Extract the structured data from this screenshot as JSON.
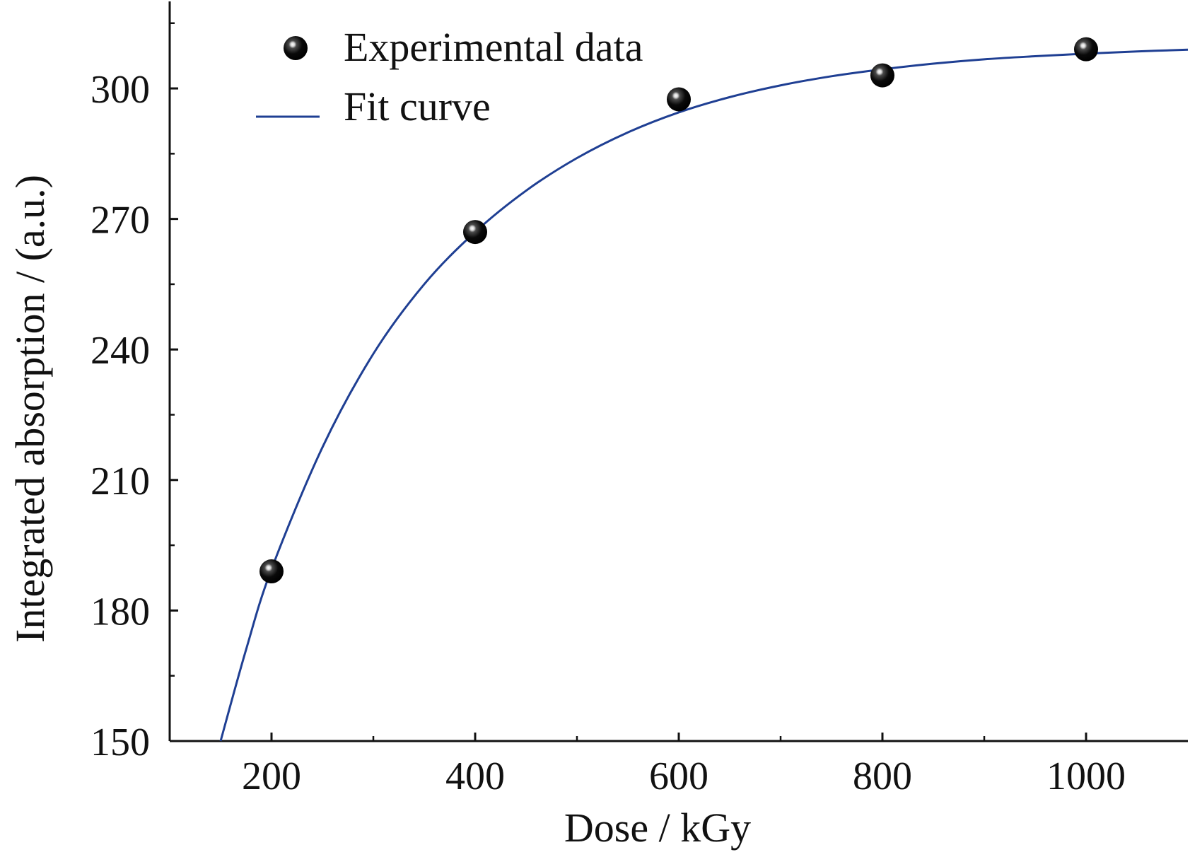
{
  "chart_data": {
    "type": "scatter",
    "title": "",
    "xlabel": "Dose / kGy",
    "ylabel": "Integrated absorption / (a.u.)",
    "xlim": [
      100,
      1100
    ],
    "ylim": [
      150,
      320
    ],
    "x_ticks": [
      200,
      400,
      600,
      800,
      1000
    ],
    "y_ticks": [
      150,
      180,
      210,
      240,
      270,
      300
    ],
    "grid": false,
    "legend_position": "top-left",
    "series": [
      {
        "name": "Experimental data",
        "kind": "scatter",
        "color": "#000000",
        "points": [
          {
            "x": 200,
            "y": 189
          },
          {
            "x": 400,
            "y": 267
          },
          {
            "x": 600,
            "y": 297.5
          },
          {
            "x": 800,
            "y": 303
          },
          {
            "x": 1000,
            "y": 309
          }
        ]
      },
      {
        "name": "Fit curve",
        "kind": "line",
        "color": "#1f3f93",
        "x": [
          150,
          175,
          200,
          250,
          300,
          350,
          400,
          450,
          500,
          550,
          600,
          650,
          700,
          750,
          800,
          850,
          900,
          950,
          1000,
          1050,
          1100
        ],
        "y": [
          150,
          171,
          189.5,
          217.5,
          239,
          255,
          267,
          276.5,
          284,
          289.9,
          294.5,
          298,
          300.7,
          302.8,
          304.4,
          305.7,
          306.7,
          307.4,
          308,
          308.5,
          308.9
        ]
      }
    ]
  }
}
